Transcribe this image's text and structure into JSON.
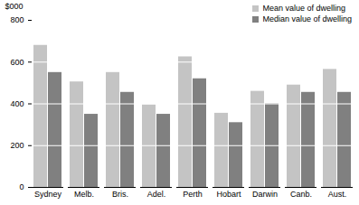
{
  "chart_data": {
    "type": "bar",
    "ylabel": "$000",
    "categories": [
      "Sydney",
      "Melb.",
      "Bris.",
      "Adel.",
      "Perth",
      "Hobart",
      "Darwin",
      "Canb.",
      "Aust."
    ],
    "series": [
      {
        "name": "Mean value of dwelling",
        "color": "#c4c4c4",
        "values": [
          680,
          505,
          550,
          395,
          625,
          355,
          460,
          490,
          565
        ]
      },
      {
        "name": "Median value of dwelling",
        "color": "#808080",
        "values": [
          550,
          350,
          455,
          350,
          520,
          310,
          400,
          455,
          455
        ]
      }
    ],
    "ylim": [
      0,
      800
    ],
    "yticks": [
      0,
      200,
      400,
      600,
      800
    ],
    "grid": true,
    "legend": "top-right"
  }
}
